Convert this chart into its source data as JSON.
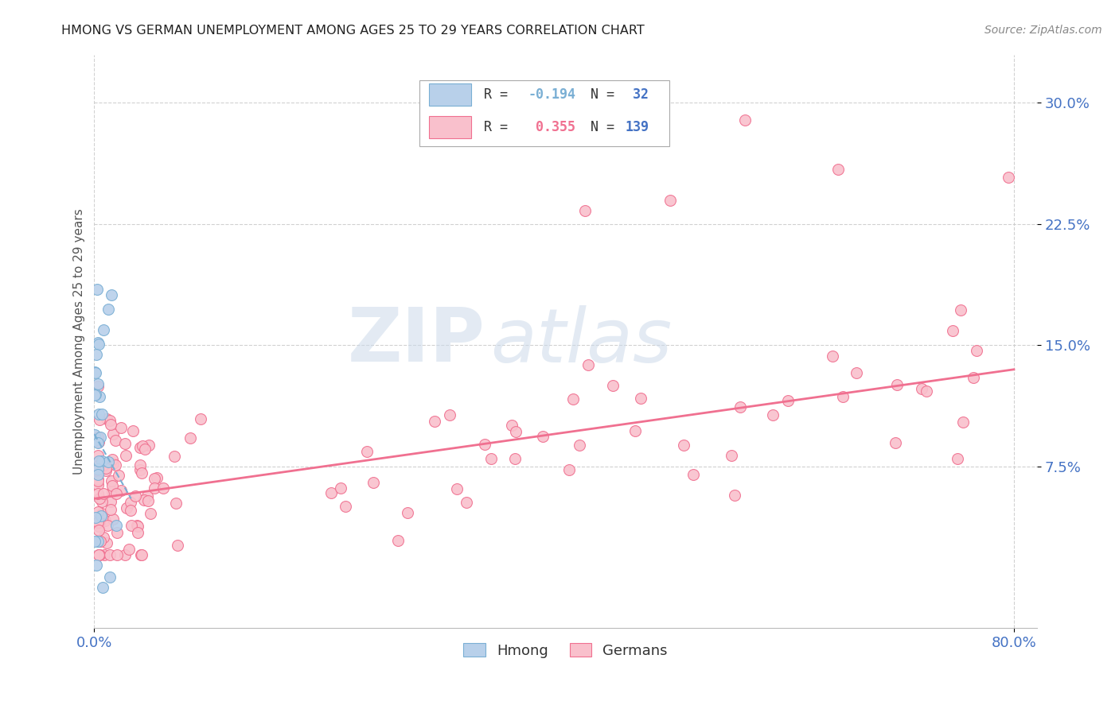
{
  "title": "HMONG VS GERMAN UNEMPLOYMENT AMONG AGES 25 TO 29 YEARS CORRELATION CHART",
  "source": "Source: ZipAtlas.com",
  "ylabel": "Unemployment Among Ages 25 to 29 years",
  "xlim": [
    0.0,
    0.82
  ],
  "ylim": [
    -0.025,
    0.33
  ],
  "hmong_fill": "#b8d0ea",
  "hmong_edge": "#7aafd4",
  "german_fill": "#f9c0cc",
  "german_edge": "#f07090",
  "trendline_hmong_color": "#7aafd4",
  "trendline_german_color": "#f07090",
  "hmong_R": -0.194,
  "hmong_N": 32,
  "german_R": 0.355,
  "german_N": 139,
  "legend_label_hmong": "Hmong",
  "legend_label_german": "Germans",
  "watermark_zip": "ZIP",
  "watermark_atlas": "atlas",
  "background_color": "#ffffff",
  "grid_color": "#cccccc",
  "tick_color": "#4472c4",
  "title_color": "#222222",
  "source_color": "#888888",
  "scatter_size": 100,
  "hmong_trendline_x": [
    0.0,
    0.032
  ],
  "hmong_trendline_y": [
    0.095,
    0.055
  ],
  "german_trendline_x": [
    0.0,
    0.8
  ],
  "german_trendline_y": [
    0.055,
    0.135
  ]
}
